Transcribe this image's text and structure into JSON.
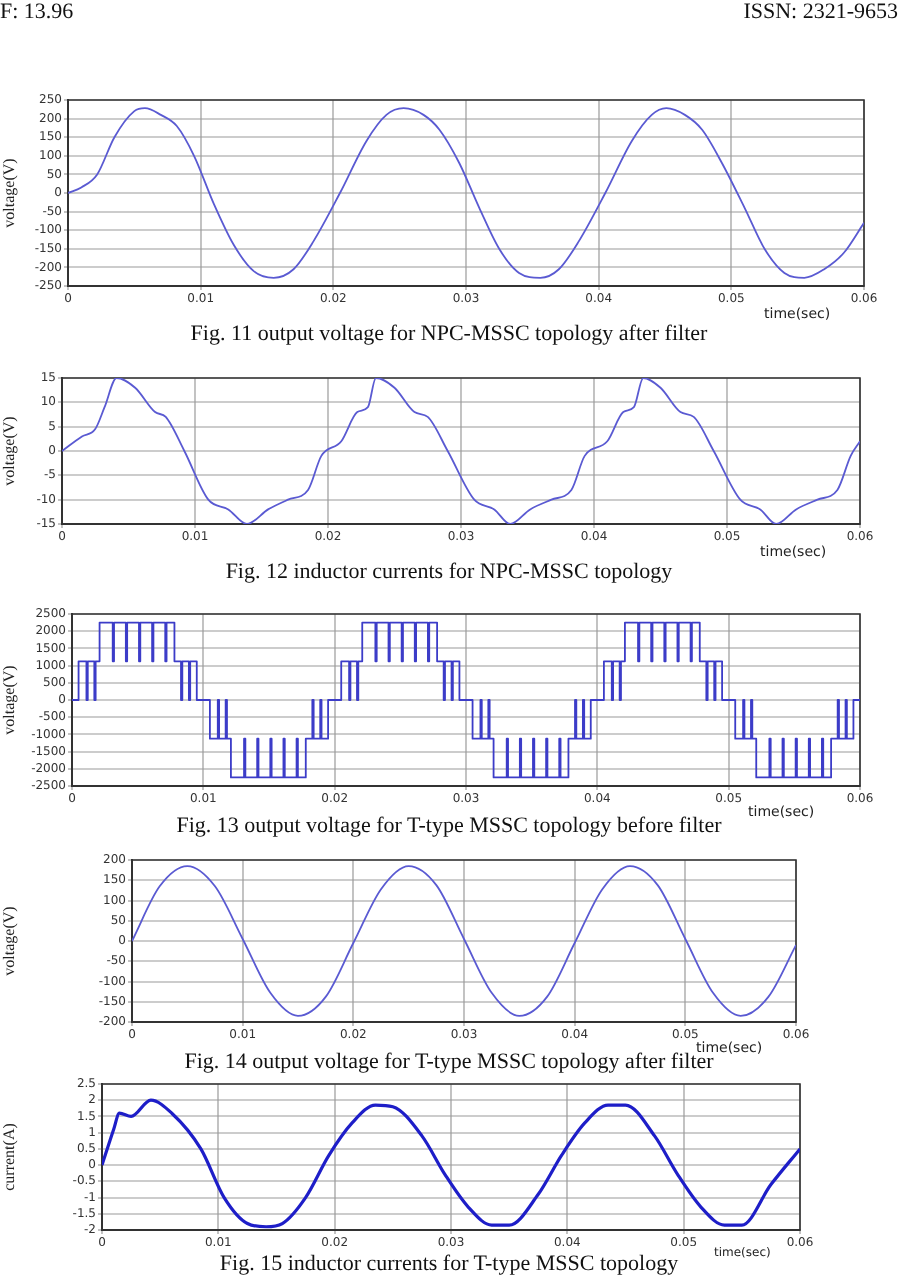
{
  "chart_data": [
    {
      "type": "line",
      "title": "Fig. 11 output voltage for NPC-MSSC topology after filter",
      "xlabel": "time(sec)",
      "ylabel": "voltage(V)",
      "annotations": [
        "F: 13.96",
        "ISSN: 2321-9653"
      ],
      "marker": "none",
      "grid": true,
      "xlim": [
        0,
        0.06
      ],
      "ylim": [
        -250,
        250
      ],
      "xticks": [
        0,
        0.01,
        0.02,
        0.03,
        0.04,
        0.05,
        0.06
      ],
      "yticks": [
        -250,
        -200,
        -150,
        -100,
        -50,
        0,
        50,
        100,
        150,
        200,
        250
      ],
      "x": [
        0,
        0.001,
        0.0022,
        0.0035,
        0.005,
        0.0058,
        0.007,
        0.0082,
        0.0095,
        0.011,
        0.0125,
        0.014,
        0.0155,
        0.017,
        0.0185,
        0.0205,
        0.0225,
        0.024,
        0.0253,
        0.0268,
        0.028,
        0.0295,
        0.031,
        0.0325,
        0.034,
        0.0356,
        0.037,
        0.0385,
        0.0405,
        0.0425,
        0.044,
        0.0451,
        0.0465,
        0.0478,
        0.0493,
        0.051,
        0.0525,
        0.054,
        0.0555,
        0.057,
        0.0585,
        0.06
      ],
      "series": [
        {
          "color": "#5a5ad2",
          "values": [
            0,
            15,
            50,
            150,
            220,
            228,
            210,
            180,
            100,
            -30,
            -140,
            -210,
            -228,
            -205,
            -130,
            0,
            140,
            210,
            228,
            210,
            170,
            80,
            -40,
            -150,
            -215,
            -228,
            -205,
            -130,
            0,
            140,
            210,
            228,
            210,
            170,
            80,
            -40,
            -150,
            -215,
            -228,
            -205,
            -160,
            -80
          ]
        }
      ]
    },
    {
      "type": "line",
      "title": "Fig. 12 inductor currents for NPC-MSSC topology",
      "xlabel": "time(sec)",
      "ylabel": "voltage(V)",
      "marker": "none",
      "grid": true,
      "xlim": [
        0,
        0.06
      ],
      "ylim": [
        -15,
        15
      ],
      "xticks": [
        0,
        0.01,
        0.02,
        0.03,
        0.04,
        0.05,
        0.06
      ],
      "yticks": [
        -15,
        -10,
        -5,
        0,
        5,
        10,
        15
      ],
      "x": [
        0,
        0.0015,
        0.0025,
        0.0032,
        0.0041,
        0.0055,
        0.007,
        0.0078,
        0.0092,
        0.011,
        0.0125,
        0.0139,
        0.0155,
        0.017,
        0.0185,
        0.0195,
        0.021,
        0.0222,
        0.023,
        0.0236,
        0.025,
        0.0265,
        0.0275,
        0.029,
        0.031,
        0.0325,
        0.0337,
        0.0352,
        0.0368,
        0.0383,
        0.0393,
        0.041,
        0.0422,
        0.043,
        0.0437,
        0.045,
        0.0465,
        0.0475,
        0.049,
        0.051,
        0.0525,
        0.0537,
        0.0552,
        0.0568,
        0.0583,
        0.0593,
        0.06
      ],
      "series": [
        {
          "color": "#5a5ad2",
          "values": [
            0,
            3,
            4.5,
            9,
            15,
            13,
            8,
            7,
            0,
            -10,
            -12,
            -15,
            -12,
            -10,
            -8,
            -1,
            2,
            8,
            9,
            15,
            13,
            8,
            7,
            0,
            -10,
            -12,
            -15,
            -12,
            -10,
            -8,
            -1,
            2,
            8,
            9,
            15,
            13,
            8,
            7,
            0,
            -10,
            -12,
            -15,
            -12,
            -10,
            -8,
            -1,
            2
          ]
        }
      ]
    },
    {
      "type": "step",
      "title": "Fig. 13 output voltage for T-type MSSC topology before filter",
      "xlabel": "time(sec)",
      "ylabel": "voltage(V)",
      "marker": "none",
      "grid": true,
      "xlim": [
        0,
        0.06
      ],
      "ylim": [
        -2500,
        2500
      ],
      "xticks": [
        0,
        0.01,
        0.02,
        0.03,
        0.04,
        0.05,
        0.06
      ],
      "yticks": [
        -2500,
        -2000,
        -1500,
        -1000,
        -500,
        0,
        500,
        1000,
        1500,
        2000,
        2500
      ],
      "x": [
        0,
        0.0005,
        0.0011,
        0.0012,
        0.0017,
        0.0018,
        0.0021,
        0.0031,
        0.0032,
        0.0041,
        0.0042,
        0.0051,
        0.0052,
        0.0061,
        0.0062,
        0.0071,
        0.0072,
        0.0078,
        0.0083,
        0.0084,
        0.0089,
        0.009,
        0.0095,
        0.0105,
        0.0111,
        0.0112,
        0.0117,
        0.0118,
        0.0121,
        0.0131,
        0.0132,
        0.0141,
        0.0142,
        0.0151,
        0.0152,
        0.0161,
        0.0162,
        0.0171,
        0.0172,
        0.0178,
        0.0183,
        0.0184,
        0.0189,
        0.019,
        0.0195,
        0.0205,
        0.0211,
        0.0212,
        0.0217,
        0.0218,
        0.0221,
        0.0231,
        0.0232,
        0.0241,
        0.0242,
        0.0251,
        0.0252,
        0.0261,
        0.0262,
        0.0271,
        0.0272,
        0.0278,
        0.0283,
        0.0284,
        0.0289,
        0.029,
        0.0295,
        0.0305,
        0.0311,
        0.0312,
        0.0317,
        0.0318,
        0.0321,
        0.0331,
        0.0332,
        0.0341,
        0.0342,
        0.0351,
        0.0352,
        0.0361,
        0.0362,
        0.0371,
        0.0372,
        0.0378,
        0.0383,
        0.0384,
        0.0389,
        0.039,
        0.0395,
        0.0405,
        0.0411,
        0.0412,
        0.0417,
        0.0418,
        0.0421,
        0.0431,
        0.0432,
        0.0441,
        0.0442,
        0.0451,
        0.0452,
        0.0461,
        0.0462,
        0.0471,
        0.0472,
        0.0478,
        0.0483,
        0.0484,
        0.0489,
        0.049,
        0.0495,
        0.0505,
        0.0511,
        0.0512,
        0.0517,
        0.0518,
        0.0521,
        0.0531,
        0.0532,
        0.0541,
        0.0542,
        0.0551,
        0.0552,
        0.0561,
        0.0562,
        0.0571,
        0.0572,
        0.0578,
        0.0583,
        0.0584,
        0.0589,
        0.059,
        0.0595,
        0.06
      ],
      "series": [
        {
          "color": "#3c3cc8",
          "values": [
            0,
            1125,
            0,
            1125,
            0,
            1125,
            2250,
            1125,
            2250,
            1125,
            2250,
            1125,
            2250,
            1125,
            2250,
            1125,
            2250,
            1125,
            0,
            1125,
            0,
            1125,
            0,
            -1125,
            0,
            -1125,
            0,
            -1125,
            -2250,
            -1125,
            -2250,
            -1125,
            -2250,
            -1125,
            -2250,
            -1125,
            -2250,
            -1125,
            -2250,
            -1125,
            0,
            -1125,
            0,
            -1125,
            0,
            1125,
            0,
            1125,
            0,
            1125,
            2250,
            1125,
            2250,
            1125,
            2250,
            1125,
            2250,
            1125,
            2250,
            1125,
            2250,
            1125,
            0,
            1125,
            0,
            1125,
            0,
            -1125,
            0,
            -1125,
            0,
            -1125,
            -2250,
            -1125,
            -2250,
            -1125,
            -2250,
            -1125,
            -2250,
            -1125,
            -2250,
            -1125,
            -2250,
            -1125,
            0,
            -1125,
            0,
            -1125,
            0,
            1125,
            0,
            1125,
            0,
            1125,
            2250,
            1125,
            2250,
            1125,
            2250,
            1125,
            2250,
            1125,
            2250,
            1125,
            2250,
            1125,
            0,
            1125,
            0,
            1125,
            0,
            -1125,
            0,
            -1125,
            0,
            -1125,
            -2250,
            -1125,
            -2250,
            -1125,
            -2250,
            -1125,
            -2250,
            -1125,
            -2250,
            -1125,
            -2250,
            -1125,
            0,
            -1125,
            0,
            -1125,
            0,
            0
          ]
        }
      ]
    },
    {
      "type": "line",
      "title": "Fig. 14 output voltage for T-type MSSC topology after filter",
      "xlabel": "time(sec)",
      "ylabel": "voltage(V)",
      "marker": "none",
      "grid": true,
      "xlim": [
        0,
        0.06
      ],
      "ylim": [
        -200,
        200
      ],
      "xticks": [
        0,
        0.01,
        0.02,
        0.03,
        0.04,
        0.05,
        0.06
      ],
      "yticks": [
        -200,
        -150,
        -100,
        -50,
        0,
        50,
        100,
        150,
        200
      ],
      "x": [
        0,
        0.0025,
        0.005,
        0.0075,
        0.01,
        0.0125,
        0.015,
        0.0175,
        0.02,
        0.0225,
        0.025,
        0.0275,
        0.03,
        0.0325,
        0.035,
        0.0375,
        0.04,
        0.0425,
        0.045,
        0.0475,
        0.05,
        0.0525,
        0.055,
        0.0575,
        0.06
      ],
      "series": [
        {
          "color": "#5a5ad2",
          "values": [
            0,
            135,
            185,
            135,
            5,
            -128,
            -185,
            -138,
            -5,
            128,
            185,
            138,
            5,
            -128,
            -185,
            -138,
            -5,
            128,
            185,
            138,
            5,
            -128,
            -185,
            -138,
            -10
          ]
        }
      ]
    },
    {
      "type": "line",
      "title": "Fig. 15 inductor currents for T-type MSSC topology",
      "xlabel": "time(sec)",
      "ylabel": "current(A)",
      "marker": "none",
      "grid": true,
      "xlim": [
        0,
        0.06
      ],
      "ylim": [
        -2,
        2.5
      ],
      "xticks": [
        0,
        0.01,
        0.02,
        0.03,
        0.04,
        0.05,
        0.06
      ],
      "yticks": [
        -2,
        -1.5,
        -1,
        -0.5,
        0,
        0.5,
        1,
        1.5,
        2,
        2.5
      ],
      "x": [
        0,
        0.001,
        0.0015,
        0.0025,
        0.0042,
        0.006,
        0.0085,
        0.0105,
        0.0125,
        0.0141,
        0.0155,
        0.0175,
        0.0195,
        0.0215,
        0.0235,
        0.025,
        0.0275,
        0.0295,
        0.0315,
        0.0335,
        0.035,
        0.0375,
        0.0395,
        0.0415,
        0.0435,
        0.045,
        0.0475,
        0.0495,
        0.0515,
        0.0535,
        0.055,
        0.0575,
        0.06
      ],
      "series": [
        {
          "color": "#1e1ec8",
          "values": [
            0,
            1.1,
            1.6,
            1.5,
            2,
            1.6,
            0.5,
            -1,
            -1.8,
            -1.9,
            -1.8,
            -1,
            0.3,
            1.3,
            1.85,
            1.8,
            0.9,
            -0.3,
            -1.3,
            -1.85,
            -1.85,
            -0.9,
            0.3,
            1.3,
            1.85,
            1.85,
            0.9,
            -0.3,
            -1.3,
            -1.85,
            -1.85,
            -0.6,
            0.5
          ]
        }
      ]
    }
  ]
}
